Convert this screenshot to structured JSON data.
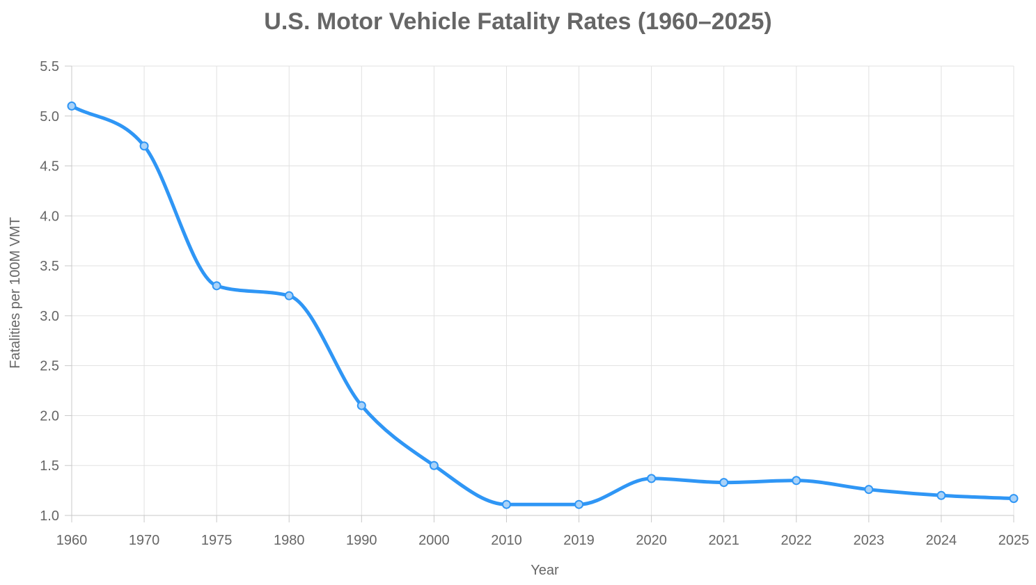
{
  "chart_data": {
    "type": "line",
    "title": "U.S. Motor Vehicle Fatality Rates (1960–2025)",
    "xlabel": "Year",
    "ylabel": "Fatalities per 100M VMT",
    "categories": [
      "1960",
      "1970",
      "1975",
      "1980",
      "1990",
      "2000",
      "2010",
      "2019",
      "2020",
      "2021",
      "2022",
      "2023",
      "2024",
      "2025"
    ],
    "series": [
      {
        "name": "Fatalities per 100M VMT",
        "values": [
          5.1,
          4.7,
          3.3,
          3.2,
          2.1,
          1.5,
          1.11,
          1.11,
          1.37,
          1.33,
          1.35,
          1.26,
          1.2,
          1.17
        ]
      }
    ],
    "ylim": [
      1.0,
      5.5
    ],
    "yticks": [
      "1.0",
      "1.5",
      "2.0",
      "2.5",
      "3.0",
      "3.5",
      "4.0",
      "4.5",
      "5.0",
      "5.5"
    ],
    "grid": true,
    "legend": "none",
    "colors": {
      "line": "#2f96f5",
      "point_fill": "#a9d2f8"
    }
  }
}
